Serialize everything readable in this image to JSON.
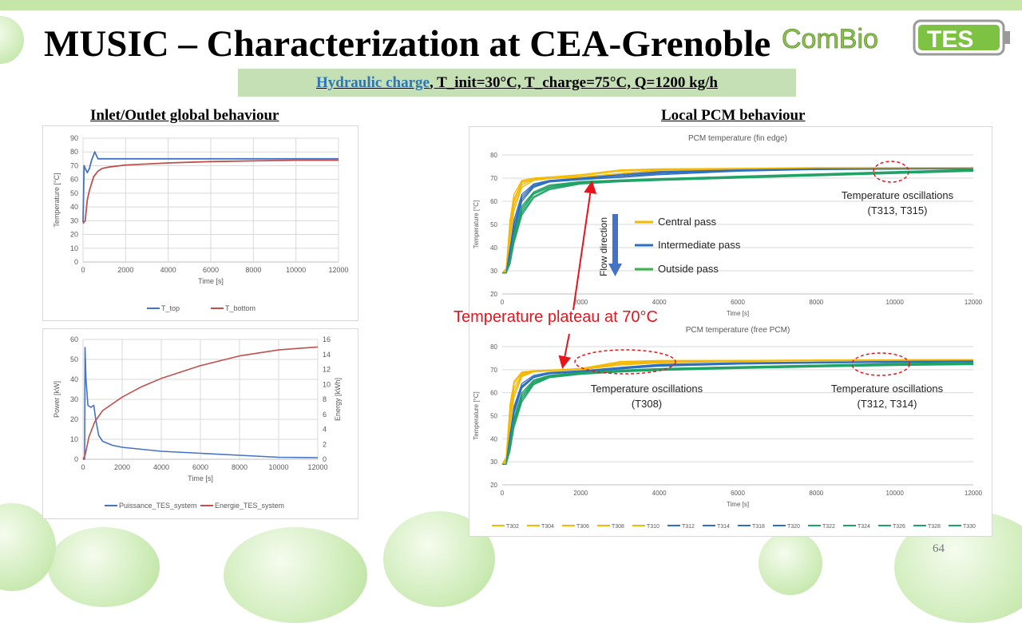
{
  "slide": {
    "title": "MUSIC – Characterization at CEA-Grenoble",
    "logo_text": "ComBio TES",
    "subtitle_link": "Hydraulic charge",
    "subtitle_rest": ", T_init=30°C, T_charge=75°C, Q=1200 kg/h",
    "left_heading": "Inlet/Outlet global behaviour",
    "right_heading": "Local PCM behaviour",
    "page_number": "64"
  },
  "annotations": {
    "plateau": "Temperature  plateau at 70°C",
    "osc_top_title": "Temperature oscillations",
    "osc_top_ids": "(T313, T315)",
    "osc_bottom_left_title": "Temperature oscillations",
    "osc_bottom_left_ids": "(T308)",
    "osc_bottom_right_title": "Temperature oscillations",
    "osc_bottom_right_ids": "(T312, T314)",
    "flow_direction": "Flow direction",
    "pass_legend": [
      {
        "label": "Central pass",
        "color": "#f5b800"
      },
      {
        "label": "Intermediate pass",
        "color": "#2e6fc0"
      },
      {
        "label": "Outside pass",
        "color": "#3cb44b"
      }
    ],
    "accent_red": "#e8141c"
  },
  "chart_data": [
    {
      "type": "line",
      "title": "",
      "xlabel": "Time [s]",
      "ylabel": "Temperature [°C]",
      "xlim": [
        0,
        12000
      ],
      "xstep": 2000,
      "ylim": [
        0,
        90
      ],
      "ystep": 10,
      "grid": "both",
      "legend": "bottom",
      "series": [
        {
          "name": "T_top",
          "color": "#4472c4",
          "x": [
            0,
            50,
            100,
            200,
            300,
            400,
            550,
            700,
            1000,
            2000,
            4000,
            6000,
            8000,
            10000,
            12000
          ],
          "y": [
            29,
            70,
            68,
            65,
            68,
            74,
            80,
            75,
            75,
            75,
            75,
            75,
            75,
            75,
            75
          ]
        },
        {
          "name": "T_bottom",
          "color": "#c0504d",
          "x": [
            0,
            100,
            200,
            300,
            500,
            700,
            900,
            1200,
            2000,
            4000,
            6000,
            8000,
            10000,
            12000
          ],
          "y": [
            28,
            30,
            45,
            52,
            62,
            66,
            68,
            69,
            70.5,
            72,
            73,
            73.5,
            74,
            74
          ]
        }
      ]
    },
    {
      "type": "line",
      "title": "",
      "xlabel": "Time [s]",
      "ylabel": "Power [kW]",
      "ylabel_right": "Energy [kWh]",
      "xlim": [
        0,
        12000
      ],
      "xstep": 2000,
      "ylim": [
        0,
        60
      ],
      "ystep": 10,
      "ylim_right": [
        0,
        16
      ],
      "ystep_right": 2,
      "grid": "both",
      "legend": "bottom",
      "series": [
        {
          "name": "Puissance_TES_system",
          "color": "#4472c4",
          "axis": "left",
          "x": [
            0,
            80,
            100,
            150,
            250,
            400,
            550,
            650,
            800,
            1000,
            1500,
            2000,
            3000,
            4000,
            6000,
            8000,
            10000,
            12000
          ],
          "y": [
            0,
            0,
            56,
            40,
            27,
            26,
            27,
            20,
            12,
            9,
            7,
            6,
            5,
            4,
            3,
            2,
            1,
            0.8
          ]
        },
        {
          "name": "Energie_TES_system",
          "color": "#c0504d",
          "axis": "right",
          "x": [
            0,
            100,
            300,
            600,
            1000,
            2000,
            3000,
            4000,
            6000,
            8000,
            10000,
            12000
          ],
          "y": [
            0,
            0.5,
            3,
            5,
            6.5,
            8.3,
            9.7,
            10.8,
            12.5,
            13.8,
            14.6,
            15
          ]
        }
      ]
    },
    {
      "type": "line",
      "title": "PCM temperature (fin edge)",
      "xlabel": "Time [s]",
      "ylabel": "Temperature [°C]",
      "xlim": [
        0,
        12000
      ],
      "xstep": 2000,
      "ylim": [
        20,
        80
      ],
      "ystep": 10,
      "grid": "horizontal",
      "x": [
        0,
        100,
        200,
        300,
        500,
        800,
        1200,
        2000,
        3000,
        4000,
        6000,
        8000,
        10000,
        12000
      ],
      "series": [
        {
          "name": "T302",
          "color": "#f5b800",
          "y": [
            29,
            31,
            52,
            63,
            69,
            70,
            70.5,
            71.5,
            73.5,
            74,
            74.2,
            74.5,
            74.5,
            74.5
          ]
        },
        {
          "name": "T304",
          "color": "#f5b800",
          "y": [
            29,
            30,
            50,
            61,
            68.5,
            70,
            70.5,
            71,
            73,
            73.8,
            74,
            74.3,
            74.4,
            74.5
          ]
        },
        {
          "name": "T306",
          "color": "#f5b800",
          "y": [
            29,
            30,
            48,
            60,
            68,
            69.5,
            70,
            70.5,
            72,
            73.5,
            74,
            74.2,
            74.3,
            74.4
          ]
        },
        {
          "name": "T308",
          "color": "#f5b800",
          "y": [
            29,
            30,
            46,
            58,
            67,
            69.5,
            70,
            70.5,
            71.5,
            73,
            73.8,
            74,
            74.2,
            74.3
          ]
        },
        {
          "name": "T310",
          "color": "#f5b800",
          "y": [
            29,
            30,
            44,
            56,
            66,
            69,
            69.8,
            70.3,
            71,
            72.5,
            73.5,
            74,
            74.2,
            74.3
          ]
        },
        {
          "name": "T312",
          "color": "#2e6fc0",
          "y": [
            29,
            29,
            40,
            52,
            63,
            67.5,
            69,
            70,
            71.5,
            72.8,
            73.5,
            74,
            74,
            74.1
          ]
        },
        {
          "name": "T314",
          "color": "#2e6fc0",
          "y": [
            29,
            29,
            38,
            50,
            62,
            67,
            68.8,
            69.8,
            71,
            72.5,
            73.4,
            73.9,
            74,
            74.1
          ]
        },
        {
          "name": "T318",
          "color": "#2e6fc0",
          "y": [
            29,
            29,
            37,
            48,
            61,
            66.5,
            68.5,
            69.5,
            70.5,
            72,
            73.2,
            73.8,
            74,
            74
          ]
        },
        {
          "name": "T320",
          "color": "#2e6fc0",
          "y": [
            29,
            29,
            36,
            47,
            60,
            66,
            68.3,
            69.3,
            70.3,
            71.5,
            73,
            73.7,
            73.9,
            74
          ]
        },
        {
          "name": "T322",
          "color": "#21a366",
          "y": [
            29,
            29,
            35,
            46,
            58,
            64,
            67,
            68.5,
            69.2,
            69.8,
            70.8,
            71.8,
            72.8,
            73.8
          ]
        },
        {
          "name": "T324",
          "color": "#21a366",
          "y": [
            29,
            29,
            34,
            45,
            57,
            63.5,
            66.5,
            68.2,
            69,
            69.6,
            70.5,
            71.5,
            72.5,
            73.5
          ]
        },
        {
          "name": "T326",
          "color": "#21a366",
          "y": [
            29,
            29,
            34,
            44,
            56,
            63,
            66,
            68,
            68.8,
            69.4,
            70.3,
            71.3,
            72.3,
            73.3
          ]
        },
        {
          "name": "T328",
          "color": "#21a366",
          "y": [
            29,
            29,
            33,
            43,
            55,
            62,
            65.5,
            67.8,
            68.6,
            69.2,
            70.1,
            71.1,
            72.1,
            73.1
          ]
        },
        {
          "name": "T330",
          "color": "#21a366",
          "y": [
            29,
            29,
            33,
            42,
            54,
            61.5,
            65,
            67.5,
            68.4,
            69,
            70,
            71,
            72,
            73
          ]
        }
      ]
    },
    {
      "type": "line",
      "title": "PCM temperature (free PCM)",
      "xlabel": "Time [s]",
      "ylabel": "Temperature [°C]",
      "xlim": [
        0,
        12000
      ],
      "xstep": 2000,
      "ylim": [
        20,
        80
      ],
      "ystep": 10,
      "grid": "horizontal",
      "legend": "bottom",
      "x": [
        0,
        100,
        200,
        300,
        500,
        800,
        1200,
        2000,
        3000,
        4000,
        6000,
        8000,
        10000,
        12000
      ],
      "series": [
        {
          "name": "T302",
          "color": "#f5b800",
          "y": [
            29,
            32,
            55,
            65,
            69,
            69.5,
            69.8,
            70.5,
            73.5,
            74,
            74,
            74.2,
            74.3,
            74.4
          ]
        },
        {
          "name": "T304",
          "color": "#f5b800",
          "y": [
            29,
            31,
            53,
            64,
            68.5,
            69.5,
            69.8,
            70.3,
            73,
            73.8,
            74,
            74.1,
            74.2,
            74.3
          ]
        },
        {
          "name": "T306",
          "color": "#f5b800",
          "y": [
            29,
            31,
            51,
            62,
            68,
            69.3,
            69.7,
            70.2,
            72.5,
            73.5,
            73.8,
            74,
            74.1,
            74.2
          ]
        },
        {
          "name": "T308",
          "color": "#f5b800",
          "y": [
            29,
            30,
            48,
            60,
            67.5,
            69.2,
            69.6,
            70.5,
            72.5,
            73.2,
            73.7,
            74,
            74.1,
            74.2
          ]
        },
        {
          "name": "T310",
          "color": "#f5b800",
          "y": [
            29,
            30,
            46,
            58,
            67,
            69,
            69.5,
            70,
            72,
            73,
            73.6,
            73.9,
            74,
            74.1
          ]
        },
        {
          "name": "T312",
          "color": "#2e6fc0",
          "y": [
            29,
            29,
            42,
            54,
            64,
            67.5,
            68.8,
            69.5,
            71,
            72.3,
            73,
            73.3,
            73.6,
            73.8
          ]
        },
        {
          "name": "T314",
          "color": "#2e6fc0",
          "y": [
            29,
            29,
            41,
            53,
            63,
            67,
            68.5,
            69.3,
            70.8,
            72,
            72.8,
            73.2,
            73.5,
            73.7
          ]
        },
        {
          "name": "T318",
          "color": "#2e6fc0",
          "y": [
            29,
            29,
            40,
            52,
            62.5,
            66.8,
            68.3,
            69.2,
            70.5,
            71.8,
            72.6,
            73,
            73.3,
            73.5
          ]
        },
        {
          "name": "T320",
          "color": "#2e6fc0",
          "y": [
            29,
            29,
            39,
            51,
            62,
            66.5,
            68.2,
            69,
            70.3,
            71.5,
            72.4,
            72.9,
            73.2,
            73.4
          ]
        },
        {
          "name": "T322",
          "color": "#21a366",
          "y": [
            29,
            29,
            38,
            49,
            60,
            65.5,
            67.5,
            68.8,
            69.8,
            70.5,
            71.3,
            72,
            72.7,
            73
          ]
        },
        {
          "name": "T324",
          "color": "#21a366",
          "y": [
            29,
            29,
            37,
            48,
            59,
            65,
            67.2,
            68.6,
            69.6,
            70.3,
            71.1,
            71.8,
            72.4,
            72.8
          ]
        },
        {
          "name": "T326",
          "color": "#21a366",
          "y": [
            29,
            29,
            36,
            47,
            58,
            64.5,
            67,
            68.4,
            69.4,
            70.1,
            70.9,
            71.6,
            72.2,
            72.6
          ]
        },
        {
          "name": "T328",
          "color": "#21a366",
          "y": [
            29,
            29,
            35,
            46,
            57,
            64,
            66.7,
            68.2,
            69.2,
            69.9,
            70.7,
            71.4,
            72,
            72.4
          ]
        },
        {
          "name": "T330",
          "color": "#21a366",
          "y": [
            29,
            29,
            35,
            45,
            56,
            63.5,
            66.5,
            68,
            69,
            69.7,
            70.5,
            71.2,
            71.8,
            72.2
          ]
        }
      ]
    }
  ]
}
